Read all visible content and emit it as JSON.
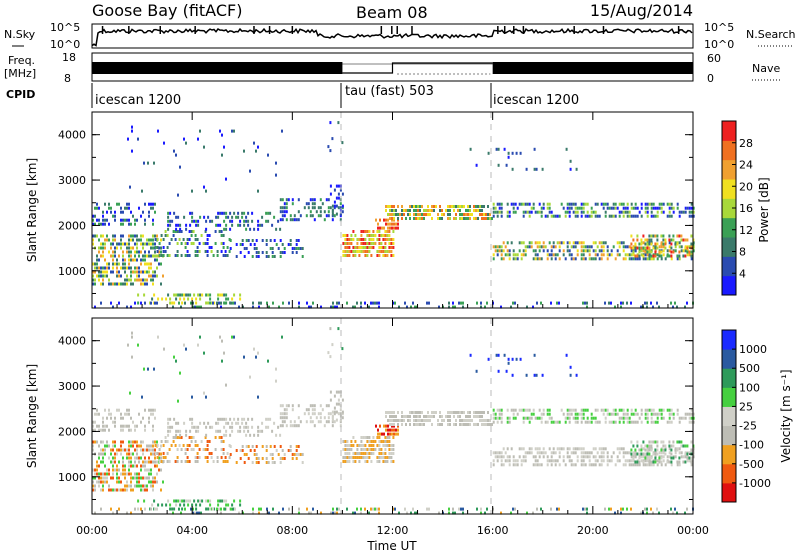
{
  "header": {
    "station": "Goose Bay (fitACF)",
    "beam": "Beam 08",
    "date": "15/Aug/2014"
  },
  "strip_labels": {
    "nsky": "N.Sky",
    "nsky_ticks": [
      "10^5",
      "10^0"
    ],
    "nsearch": "N.Search",
    "freq_line1": "Freq.",
    "freq_line2": "[MHz]",
    "freq_ticks": [
      "18",
      "8"
    ],
    "nave": "Nave",
    "nave_ticks": [
      "60",
      "0"
    ],
    "cpid": "CPID"
  },
  "cpid_segments": [
    {
      "label": "icescan 1200",
      "start_h": 0,
      "end_h": 10
    },
    {
      "label": "tau (fast) 503",
      "start_h": 10,
      "end_h": 16
    },
    {
      "label": "icescan 1200",
      "start_h": 16,
      "end_h": 24
    }
  ],
  "x_ticks": [
    "00:00",
    "04:00",
    "08:00",
    "12:00",
    "16:00",
    "20:00",
    "00:00"
  ],
  "x_label": "Time UT",
  "colors": {
    "power": [
      "#1a1aff",
      "#2a4bb0",
      "#3a7a6a",
      "#3aa055",
      "#a8d83a",
      "#f0e020",
      "#f0a030",
      "#f07020",
      "#ee2020"
    ],
    "velocity": [
      "#e01010",
      "#f05a10",
      "#f0a020",
      "#bdbdb5",
      "#d0d0c8",
      "#46d040",
      "#2e9a5a",
      "#2a5aa0",
      "#1a2aff"
    ]
  },
  "chart_data": [
    {
      "type": "heatmap",
      "panel": "power",
      "ylabel": "Slant Range [km]",
      "xlim_hours": [
        0,
        24
      ],
      "ylim_km": [
        180,
        4500
      ],
      "y_ticks": [
        "1000",
        "2000",
        "3000",
        "4000"
      ],
      "colorbar_label": "Power [dB]",
      "colorbar_ticks": [
        "4",
        "8",
        "12",
        "16",
        "20",
        "24",
        "28"
      ],
      "colorbar_range": [
        0,
        32
      ]
    },
    {
      "type": "heatmap",
      "panel": "velocity",
      "ylabel": "Slant Range [km]",
      "xlim_hours": [
        0,
        24
      ],
      "ylim_km": [
        180,
        4500
      ],
      "y_ticks": [
        "1000",
        "2000",
        "3000",
        "4000"
      ],
      "colorbar_label": "Velocity [m s⁻¹]",
      "colorbar_ticks": [
        "1000",
        "500",
        "100",
        "25",
        "-25",
        "-100",
        "-500",
        "-1000"
      ]
    }
  ]
}
